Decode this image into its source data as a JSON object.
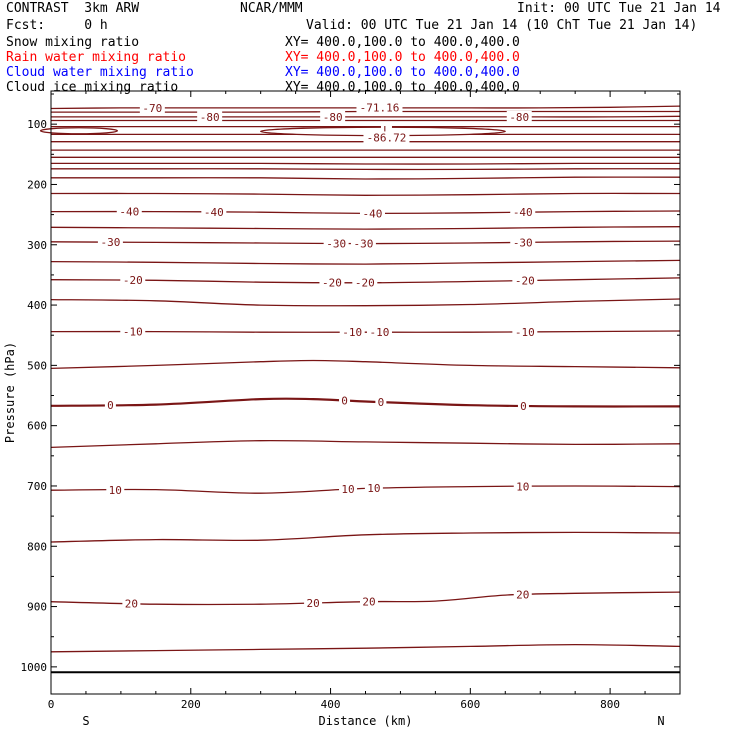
{
  "header": {
    "left_title": "CONTRAST  3km ARW",
    "center_title": "NCAR/MMM",
    "init": "Init: 00 UTC Tue 21 Jan 14",
    "fcst_label": "Fcst:     0 h",
    "valid": "Valid: 00 UTC Tue 21 Jan 14 (10 ChT Tue 21 Jan 14)",
    "fields": [
      {
        "name": "Snow mixing ratio",
        "xy": "XY= 400.0,100.0 to 400.0,400.0",
        "color": "#000000"
      },
      {
        "name": "Rain water mixing ratio",
        "xy": "XY= 400.0,100.0 to 400.0,400.0",
        "color": "#ff0000"
      },
      {
        "name": "Cloud water mixing ratio",
        "xy": "XY= 400.0,100.0 to 400.0,400.0",
        "color": "#0000ff"
      },
      {
        "name": "Cloud ice mixing ratio",
        "xy": "XY= 400.0,100.0 to 400.0,400.0",
        "color": "#000000"
      }
    ]
  },
  "chart_data": {
    "type": "line",
    "xlabel": "Distance (km)",
    "ylabel": "Pressure (hPa)",
    "xlim": [
      0,
      900
    ],
    "ylim": [
      1045,
      45
    ],
    "x_ticks": [
      0,
      200,
      400,
      600,
      800
    ],
    "y_ticks": [
      100,
      200,
      300,
      400,
      500,
      600,
      700,
      800,
      900,
      1000
    ],
    "x_end_labels": {
      "left": "S",
      "right": "N"
    },
    "contour_color": "#7a1515",
    "surface_pressure": 1009,
    "contours": [
      {
        "level": -70,
        "x": [
          0,
          100,
          200,
          300,
          400,
          500,
          600,
          700,
          800,
          900
        ],
        "p": [
          74,
          73,
          73,
          73,
          73,
          73,
          73,
          73,
          72,
          70
        ],
        "labels": [
          {
            "x": 145,
            "text": "-70"
          }
        ]
      },
      {
        "level": -75,
        "x": [
          0,
          150,
          300,
          450,
          600,
          750,
          900
        ],
        "p": [
          80,
          80,
          80,
          79,
          79,
          79,
          79
        ],
        "labels": []
      },
      {
        "level": -80,
        "x": [
          0,
          100,
          200,
          300,
          400,
          500,
          600,
          700,
          800,
          900
        ],
        "p": [
          88,
          88,
          88,
          88,
          88,
          88,
          88,
          88,
          88,
          87
        ],
        "labels": [
          {
            "x": 227,
            "text": "-80"
          },
          {
            "x": 403,
            "text": "-80"
          },
          {
            "x": 670,
            "text": "-80"
          }
        ]
      },
      {
        "level": -82,
        "x": [
          0,
          150,
          300,
          450,
          600,
          750,
          900
        ],
        "p": [
          94,
          94,
          94,
          94,
          94,
          94,
          94
        ],
        "labels": []
      },
      {
        "level": -84,
        "x": [
          0,
          150,
          300,
          450,
          600,
          750,
          900
        ],
        "p": [
          104,
          104,
          104,
          104,
          104,
          104,
          104
        ],
        "labels": []
      },
      {
        "level": -84,
        "x": [
          0,
          150,
          300,
          450,
          600,
          750,
          900
        ],
        "p": [
          117,
          117,
          117,
          117,
          117,
          117,
          117
        ],
        "labels": []
      },
      {
        "level": -80,
        "x": [
          0,
          150,
          300,
          450,
          600,
          750,
          900
        ],
        "p": [
          129,
          129,
          129,
          129,
          129,
          129,
          129
        ],
        "labels": []
      },
      {
        "level": -75,
        "x": [
          0,
          150,
          300,
          450,
          600,
          750,
          900
        ],
        "p": [
          143,
          143,
          143,
          143,
          143,
          143,
          143
        ],
        "labels": []
      },
      {
        "level": -70,
        "x": [
          0,
          150,
          300,
          450,
          600,
          750,
          900
        ],
        "p": [
          155,
          155,
          155,
          155,
          155,
          155,
          155
        ],
        "labels": []
      },
      {
        "level": -60,
        "x": [
          0,
          150,
          300,
          450,
          600,
          750,
          900
        ],
        "p": [
          165,
          165,
          165,
          166,
          166,
          165,
          165
        ],
        "labels": []
      },
      {
        "level": -55,
        "x": [
          0,
          150,
          300,
          450,
          600,
          750,
          900
        ],
        "p": [
          174,
          174,
          174,
          175,
          175,
          174,
          174
        ],
        "labels": []
      },
      {
        "level": -50,
        "x": [
          0,
          150,
          300,
          450,
          600,
          750,
          900
        ],
        "p": [
          189,
          189,
          189,
          191,
          190,
          188,
          188
        ],
        "labels": []
      },
      {
        "level": -45,
        "x": [
          0,
          150,
          300,
          450,
          600,
          750,
          900
        ],
        "p": [
          215,
          215,
          216,
          218,
          217,
          215,
          215
        ],
        "labels": []
      },
      {
        "level": -40,
        "x": [
          0,
          150,
          300,
          450,
          600,
          750,
          900
        ],
        "p": [
          245,
          245,
          246,
          248,
          247,
          245,
          244
        ],
        "labels": [
          {
            "x": 112,
            "text": "-40"
          },
          {
            "x": 233,
            "text": "-40"
          },
          {
            "x": 460,
            "text": "-40"
          },
          {
            "x": 675,
            "text": "-40"
          }
        ]
      },
      {
        "level": -35,
        "x": [
          0,
          150,
          300,
          450,
          600,
          750,
          900
        ],
        "p": [
          271,
          272,
          273,
          274,
          273,
          271,
          270
        ],
        "labels": []
      },
      {
        "level": -30,
        "x": [
          0,
          150,
          300,
          450,
          600,
          750,
          900
        ],
        "p": [
          295,
          296,
          297,
          298,
          297,
          295,
          294
        ],
        "labels": [
          {
            "x": 85,
            "text": "-30"
          },
          {
            "x": 408,
            "text": "-30"
          },
          {
            "x": 447,
            "text": "-30"
          },
          {
            "x": 675,
            "text": "-30"
          }
        ]
      },
      {
        "level": -25,
        "x": [
          0,
          150,
          300,
          450,
          600,
          750,
          900
        ],
        "p": [
          328,
          329,
          331,
          332,
          330,
          328,
          326
        ],
        "labels": []
      },
      {
        "level": -20,
        "x": [
          0,
          150,
          300,
          450,
          600,
          750,
          900
        ],
        "p": [
          358,
          359,
          362,
          363,
          361,
          358,
          355
        ],
        "labels": [
          {
            "x": 117,
            "text": "-20"
          },
          {
            "x": 402,
            "text": "-20"
          },
          {
            "x": 449,
            "text": "-20"
          },
          {
            "x": 678,
            "text": "-20"
          }
        ]
      },
      {
        "level": -15,
        "x": [
          0,
          150,
          300,
          450,
          600,
          750,
          900
        ],
        "p": [
          391,
          393,
          400,
          401,
          399,
          394,
          390
        ],
        "labels": []
      },
      {
        "level": -10,
        "x": [
          0,
          150,
          300,
          450,
          600,
          750,
          900
        ],
        "p": [
          444,
          444,
          445,
          445,
          445,
          444,
          443
        ],
        "labels": [
          {
            "x": 117,
            "text": "-10"
          },
          {
            "x": 431,
            "text": "-10"
          },
          {
            "x": 470,
            "text": "-10"
          },
          {
            "x": 678,
            "text": "-10"
          }
        ]
      },
      {
        "level": -5,
        "x": [
          0,
          150,
          300,
          375,
          450,
          600,
          750,
          900
        ],
        "p": [
          505,
          500,
          494,
          492,
          494,
          500,
          502,
          504
        ],
        "labels": []
      },
      {
        "level": 0,
        "x": [
          0,
          150,
          300,
          375,
          450,
          600,
          750,
          900
        ],
        "p": [
          567,
          565,
          556,
          556,
          560,
          566,
          568,
          568
        ],
        "labels": [
          {
            "x": 85,
            "text": "0"
          },
          {
            "x": 420,
            "text": "0"
          },
          {
            "x": 472,
            "text": "0"
          },
          {
            "x": 676,
            "text": "0"
          }
        ],
        "bold": true
      },
      {
        "level": 5,
        "x": [
          0,
          150,
          300,
          450,
          600,
          750,
          900
        ],
        "p": [
          636,
          630,
          625,
          627,
          629,
          631,
          630
        ],
        "labels": []
      },
      {
        "level": 10,
        "x": [
          0,
          150,
          300,
          450,
          600,
          750,
          900
        ],
        "p": [
          707,
          706,
          712,
          704,
          701,
          700,
          701
        ],
        "labels": [
          {
            "x": 92,
            "text": "10"
          },
          {
            "x": 425,
            "text": "10"
          },
          {
            "x": 462,
            "text": "10"
          },
          {
            "x": 675,
            "text": "10"
          }
        ]
      },
      {
        "level": 15,
        "x": [
          0,
          150,
          300,
          450,
          600,
          750,
          900
        ],
        "p": [
          793,
          789,
          790,
          781,
          778,
          777,
          778
        ],
        "labels": []
      },
      {
        "level": 20,
        "x": [
          0,
          150,
          300,
          450,
          550,
          650,
          750,
          900
        ],
        "p": [
          892,
          896,
          896,
          892,
          891,
          881,
          878,
          876
        ],
        "labels": [
          {
            "x": 115,
            "text": "20"
          },
          {
            "x": 375,
            "text": "20"
          },
          {
            "x": 455,
            "text": "20"
          },
          {
            "x": 675,
            "text": "20"
          }
        ]
      },
      {
        "level": 25,
        "x": [
          0,
          150,
          300,
          450,
          600,
          750,
          900
        ],
        "p": [
          975,
          973,
          971,
          969,
          966,
          963,
          966
        ],
        "labels": []
      }
    ],
    "annotations": [
      {
        "x": 470,
        "p": 72,
        "text": "-71.16"
      },
      {
        "x": 480,
        "p": 110,
        "text": "L"
      },
      {
        "x": 480,
        "p": 122,
        "text": "-86.72"
      }
    ],
    "enclosed_contours": [
      {
        "level": -82,
        "center_x": 475,
        "center_p": 112,
        "half_width_x": 175,
        "half_height_p": 7
      },
      {
        "level": -82,
        "center_x": 40,
        "center_p": 111,
        "half_width_x": 55,
        "half_height_p": 5
      }
    ]
  }
}
